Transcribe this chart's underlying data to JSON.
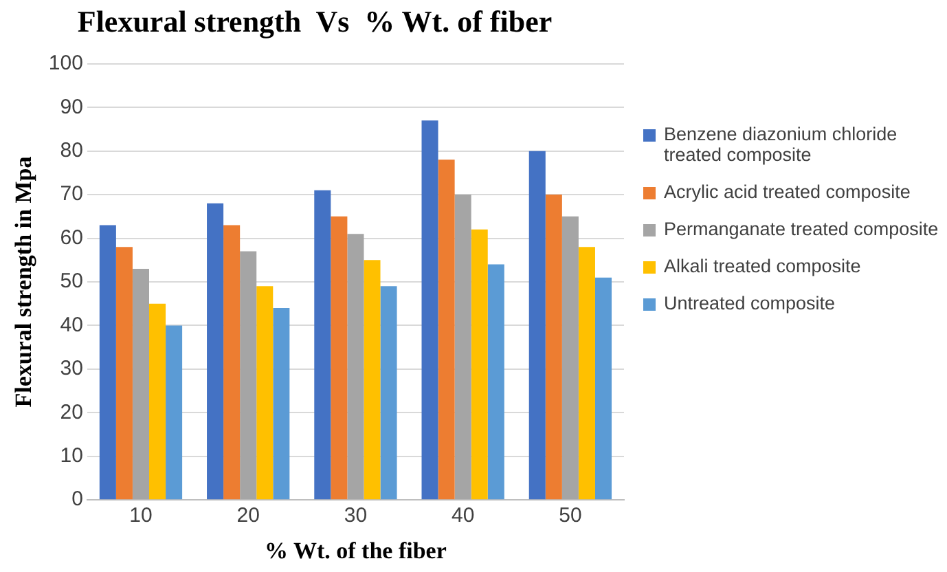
{
  "chart_data": {
    "type": "bar",
    "title": "Flexural strength  Vs  % Wt. of fiber",
    "xlabel": "% Wt. of the fiber",
    "ylabel": "Flexural strength in Mpa",
    "categories": [
      "10",
      "20",
      "30",
      "40",
      "50"
    ],
    "series": [
      {
        "name": "Benzene diazonium chloride treated composite",
        "color": "#4472c4",
        "values": [
          63,
          68,
          71,
          87,
          80
        ]
      },
      {
        "name": "Acrylic acid treated composite",
        "color": "#ed7d31",
        "values": [
          58,
          63,
          65,
          78,
          70
        ]
      },
      {
        "name": "Permanganate treated composite",
        "color": "#a5a5a5",
        "values": [
          53,
          57,
          61,
          70,
          65
        ]
      },
      {
        "name": "Alkali treated composite",
        "color": "#ffc000",
        "values": [
          45,
          49,
          55,
          62,
          58
        ]
      },
      {
        "name": "Untreated composite",
        "color": "#5b9bd5",
        "values": [
          40,
          44,
          49,
          54,
          51
        ]
      }
    ],
    "ylim": [
      0,
      100
    ],
    "yticks": [
      0,
      10,
      20,
      30,
      40,
      50,
      60,
      70,
      80,
      90,
      100
    ],
    "grid": "y",
    "legend": "right"
  }
}
